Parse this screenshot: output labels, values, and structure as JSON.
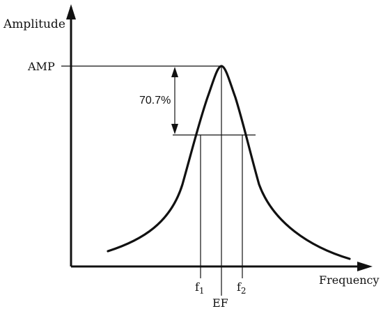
{
  "diagram": {
    "y_axis_label": "Amplitude",
    "x_axis_label": "Frequency",
    "peak_label": "AMP",
    "drop_label": "70.7%",
    "f1_base": "f",
    "f1_sub": "1",
    "f2_base": "f",
    "f2_sub": "2",
    "center_label": "EF"
  },
  "colors": {
    "ink": "#111111",
    "background": "#ffffff"
  }
}
